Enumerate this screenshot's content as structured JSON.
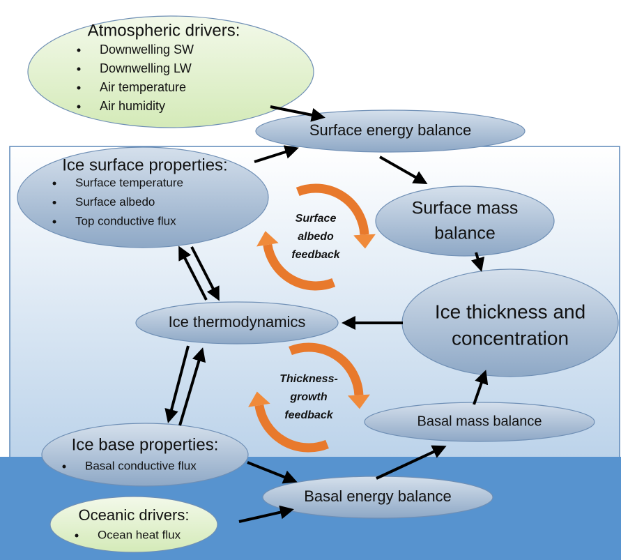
{
  "nodes": [
    {
      "title": [
        "Atmospheric drivers:"
      ],
      "items": [
        "Downwelling SW",
        "Downwelling LW",
        "Air temperature",
        "Air humidity"
      ]
    },
    {
      "title": [
        "Surface energy balance"
      ]
    },
    {
      "title": [
        "Ice surface properties:"
      ],
      "items": [
        "Surface temperature",
        "Surface albedo",
        "Top conductive flux"
      ]
    },
    {
      "title": [
        "Surface mass",
        "balance"
      ]
    },
    {
      "title": [
        "Ice thickness and",
        "concentration"
      ]
    },
    {
      "title": [
        "Ice thermodynamics"
      ]
    },
    {
      "title": [
        "Basal mass balance"
      ]
    },
    {
      "title": [
        "Ice base properties:"
      ],
      "items": [
        "Basal conductive flux"
      ]
    },
    {
      "title": [
        "Basal energy balance"
      ]
    },
    {
      "title": [
        "Oceanic drivers:"
      ],
      "items": [
        "Ocean heat flux"
      ]
    }
  ],
  "feedbacks": [
    {
      "lines": [
        "Surface",
        "albedo",
        "feedback"
      ]
    },
    {
      "lines": [
        "Thickness-",
        "growth",
        "feedback"
      ]
    }
  ]
}
